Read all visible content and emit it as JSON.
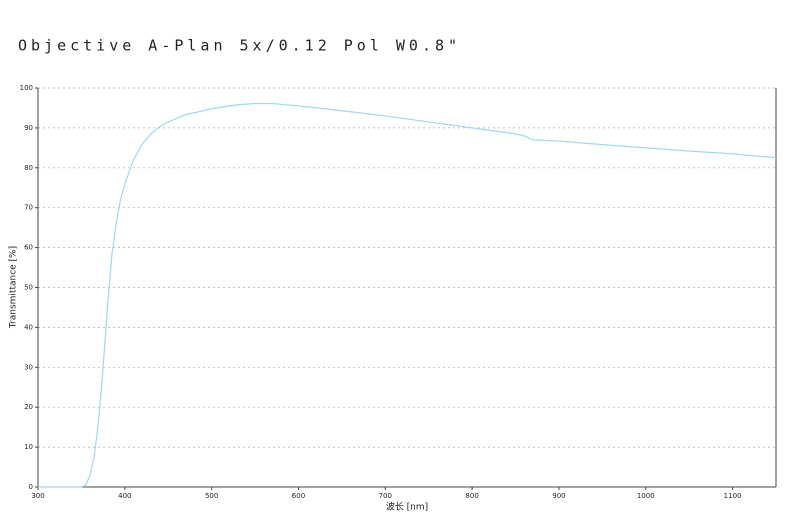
{
  "chart_data": {
    "type": "line",
    "title": "Objective A-Plan 5x/0.12 Pol W0.8\"",
    "x_label": "波长 [nm]",
    "y_label": "Transmittance [%]",
    "x": [
      300,
      350,
      355,
      360,
      365,
      370,
      375,
      380,
      385,
      390,
      395,
      400,
      410,
      420,
      430,
      440,
      450,
      470,
      500,
      530,
      550,
      570,
      600,
      650,
      700,
      750,
      800,
      850,
      860,
      870,
      900,
      950,
      1000,
      1050,
      1100,
      1150
    ],
    "series": [
      {
        "name": "Transmittance",
        "color": "#9fd8ea",
        "values": [
          0,
          0,
          0.5,
          3,
          8,
          17,
          30,
          45,
          58,
          66,
          72,
          76,
          82,
          86,
          88.5,
          90.3,
          91.5,
          93.3,
          94.8,
          95.8,
          96.1,
          96.1,
          95.5,
          94.3,
          93,
          91.5,
          90,
          88.5,
          88,
          87,
          86.7,
          85.8,
          85,
          84.2,
          83.5,
          82.5
        ]
      }
    ],
    "xlim": [
      300,
      1150
    ],
    "xticks": [
      300,
      400,
      500,
      600,
      700,
      800,
      900,
      1000,
      1100
    ],
    "ylim": [
      0,
      100
    ],
    "yticks": [
      0,
      10,
      20,
      30,
      40,
      50,
      60,
      70,
      80,
      90,
      100
    ],
    "grid": true
  }
}
